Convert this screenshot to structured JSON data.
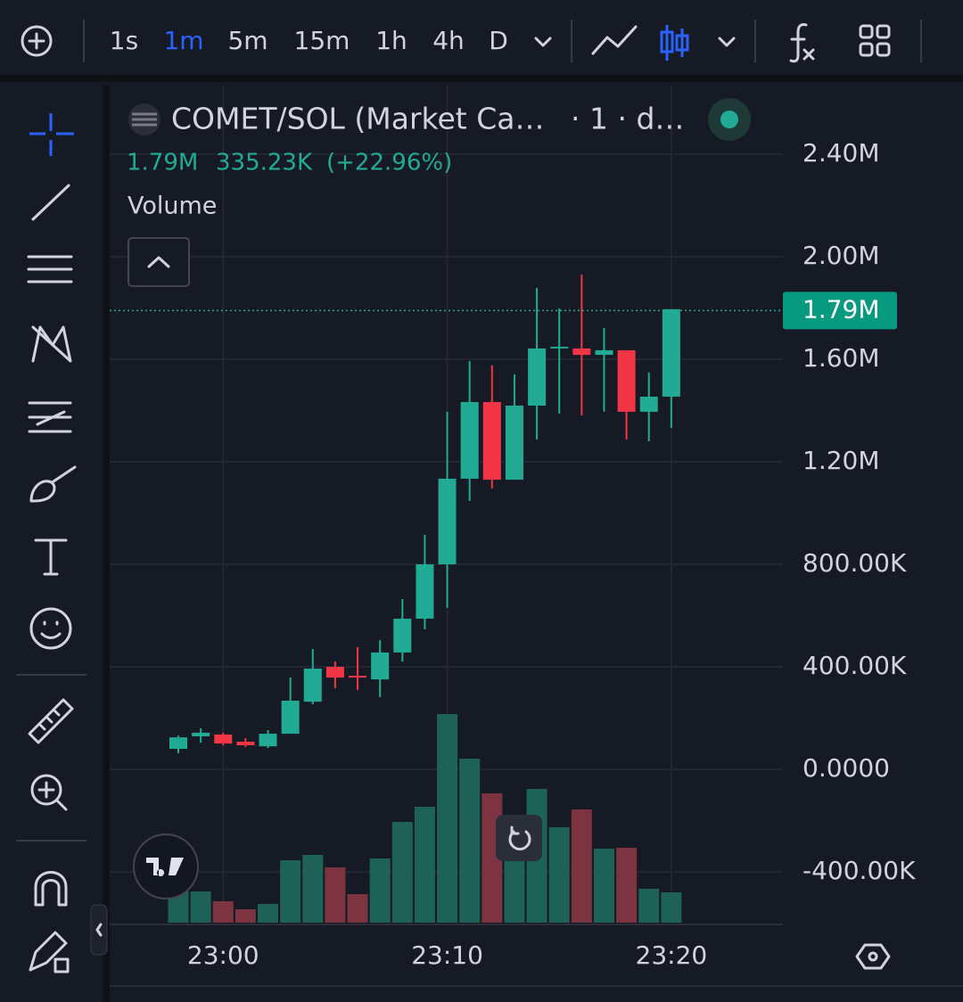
{
  "toolbar": {
    "intervals": [
      "1s",
      "1m",
      "5m",
      "15m",
      "1h",
      "4h",
      "D"
    ],
    "active_interval": "1m"
  },
  "chart_data": {
    "type": "candlestick",
    "symbol": "COMET/SOL (Market Ca…",
    "interval_label": "· 1 · d…",
    "last": {
      "value": 1790000,
      "label": "1.79M"
    },
    "change": "335.23K",
    "change_pct": "(+22.96%)",
    "volume_label": "Volume",
    "categories": [
      null,
      null,
      "23:00",
      null,
      null,
      null,
      null,
      null,
      null,
      null,
      null,
      null,
      "23:10",
      null,
      null,
      null,
      null,
      null,
      null,
      null,
      null,
      null,
      "23:20"
    ],
    "open": [
      80000,
      129000,
      136000,
      108000,
      90000,
      139000,
      264000,
      400000,
      365000,
      351000,
      456000,
      588000,
      800000,
      1134000,
      1433000,
      1130000,
      1419000,
      1642000,
      1642000,
      1617000,
      1635000,
      1395000,
      1454000
    ],
    "high": [
      132000,
      160000,
      143000,
      122000,
      153000,
      358000,
      470000,
      421000,
      477000,
      504000,
      664000,
      915000,
      1395000,
      1593000,
      1576000,
      1541000,
      1878000,
      1798000,
      1930000,
      1722000,
      1635000,
      1548000,
      1795000
    ],
    "low": [
      63000,
      104000,
      94000,
      87000,
      83000,
      139000,
      254000,
      317000,
      310000,
      282000,
      421000,
      546000,
      630000,
      1047000,
      1096000,
      1130000,
      1287000,
      1388000,
      1381000,
      1395000,
      1287000,
      1280000,
      1332000
    ],
    "close": [
      125000,
      143000,
      101000,
      94000,
      139000,
      268000,
      393000,
      358000,
      358000,
      456000,
      588000,
      800000,
      1134000,
      1433000,
      1130000,
      1419000,
      1642000,
      1649000,
      1617000,
      1635000,
      1395000,
      1454000,
      1795000
    ],
    "volume": [
      35,
      35,
      24,
      15,
      21,
      70,
      76,
      62,
      32,
      72,
      113,
      130,
      234,
      184,
      145,
      85,
      150,
      107,
      127,
      83,
      84,
      38,
      34
    ],
    "up_color": "#22ab94",
    "down_color": "#f23645",
    "ylim": [
      -598000,
      2671000
    ],
    "yticks": [
      {
        "value": 2400000,
        "label": "2.40M"
      },
      {
        "value": 2000000,
        "label": "2.00M"
      },
      {
        "value": 1600000,
        "label": "1.60M"
      },
      {
        "value": 1200000,
        "label": "1.20M"
      },
      {
        "value": 800000,
        "label": "800.00K"
      },
      {
        "value": 400000,
        "label": "400.00K"
      },
      {
        "value": 0,
        "label": "0.0000"
      },
      {
        "value": -400000,
        "label": "-400.00K"
      }
    ],
    "grid": true
  }
}
